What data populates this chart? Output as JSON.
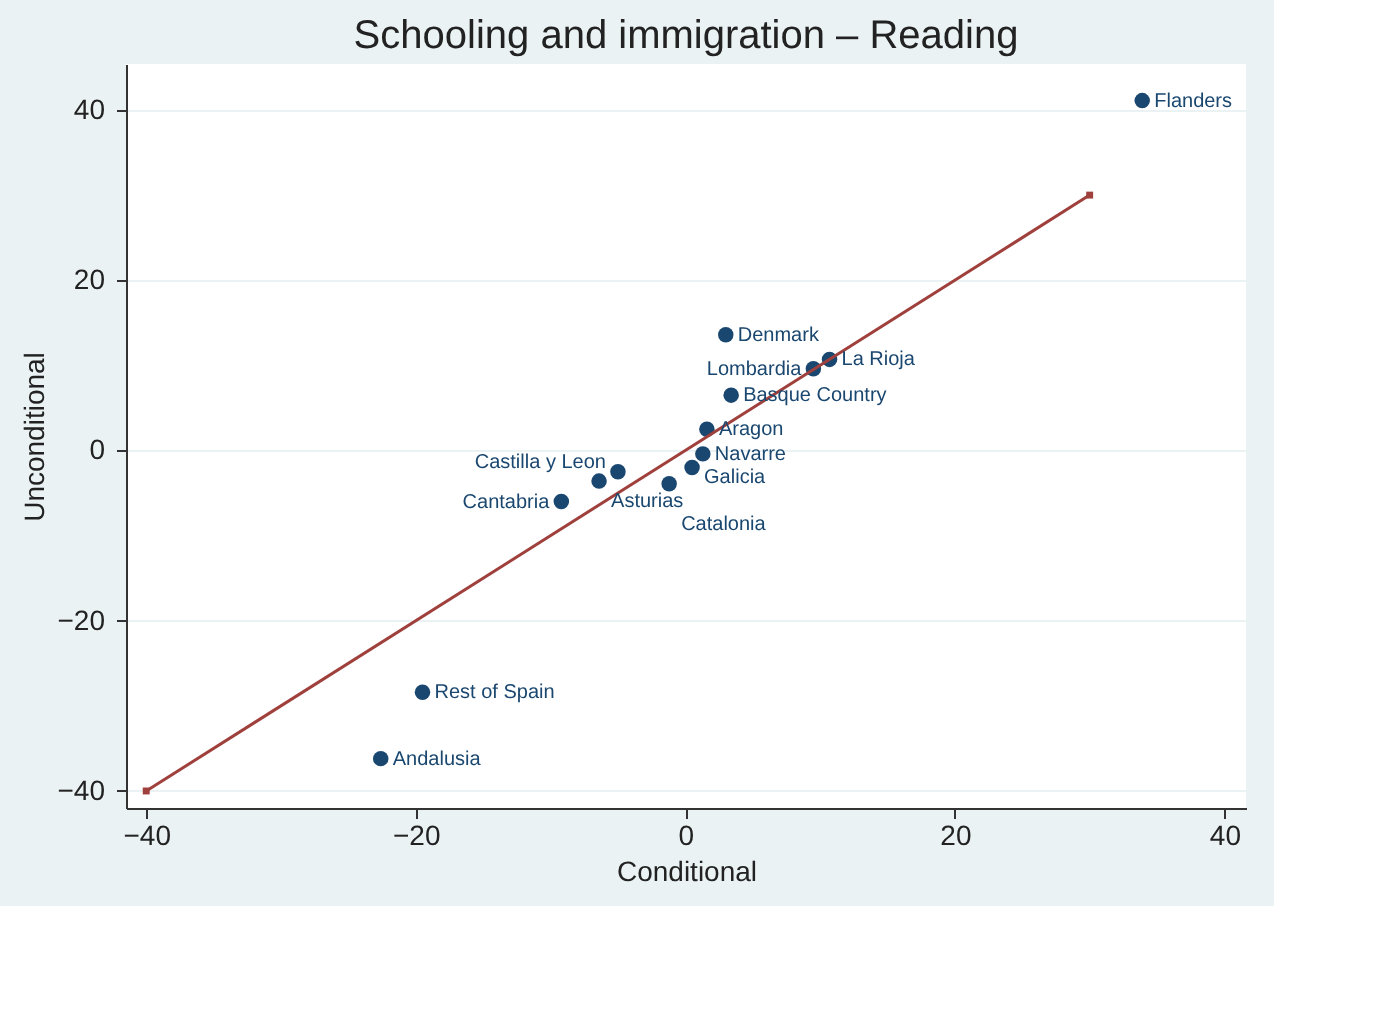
{
  "chart_data": {
    "type": "scatter",
    "title": "Schooling and immigration – Reading",
    "xlabel": "Conditional",
    "ylabel": "Unconditional",
    "xlim": [
      -41.5,
      41.6
    ],
    "ylim": [
      -42,
      45.4
    ],
    "xticks": [
      -40,
      -20,
      0,
      20,
      40
    ],
    "yticks": [
      -40,
      -20,
      0,
      20,
      40
    ],
    "grid": "y",
    "marker": "circle",
    "series": [
      {
        "color": "#1a476f",
        "x": [
          33.9,
          3.0,
          10.7,
          9.5,
          3.4,
          1.6,
          1.3,
          -5.0,
          0.5,
          -6.4,
          -1.2,
          -9.2,
          -19.5,
          -22.6
        ],
        "values": [
          41.1,
          13.6,
          10.7,
          9.6,
          6.5,
          2.5,
          -0.4,
          -2.5,
          -2.0,
          -3.6,
          -3.9,
          -6.0,
          -28.4,
          -36.2
        ]
      },
      {
        "type": "line",
        "color": "#a0403c",
        "marker": "square",
        "x": [
          -40,
          30
        ],
        "values": [
          -40,
          30
        ]
      }
    ],
    "annotations": [
      {
        "text": "Flanders",
        "x": 33.9,
        "y": 41.1
      },
      {
        "text": "Denmark",
        "x": 3.0,
        "y": 13.6
      },
      {
        "text": "La Rioja",
        "x": 10.7,
        "y": 10.7
      },
      {
        "text": "Lombardia",
        "x": 9.5,
        "y": 9.6
      },
      {
        "text": "Basque Country",
        "x": 3.4,
        "y": 6.5
      },
      {
        "text": "Aragon",
        "x": 1.6,
        "y": 2.5
      },
      {
        "text": "Navarre",
        "x": 1.3,
        "y": -0.4
      },
      {
        "text": "Castilla y Leon",
        "x": -5.0,
        "y": -2.5
      },
      {
        "text": "Galicia",
        "x": 0.5,
        "y": -2.0
      },
      {
        "text": "Asturias",
        "x": -6.4,
        "y": -3.6
      },
      {
        "text": "Catalonia",
        "x": -1.2,
        "y": -3.9
      },
      {
        "text": "Cantabria",
        "x": -9.2,
        "y": -6.0
      },
      {
        "text": "Rest of Spain",
        "x": -19.5,
        "y": -28.4
      },
      {
        "text": "Andalusia",
        "x": -22.6,
        "y": -36.2
      }
    ]
  }
}
